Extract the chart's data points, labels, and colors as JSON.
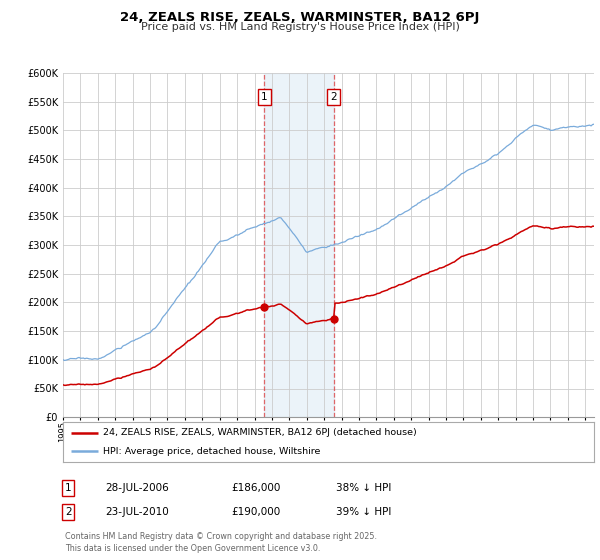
{
  "title": "24, ZEALS RISE, ZEALS, WARMINSTER, BA12 6PJ",
  "subtitle": "Price paid vs. HM Land Registry's House Price Index (HPI)",
  "background_color": "#ffffff",
  "plot_bg_color": "#ffffff",
  "grid_color": "#cccccc",
  "hpi_color": "#7aabdb",
  "price_color": "#cc0000",
  "sale1_date": 2006.57,
  "sale1_price": 186000,
  "sale2_date": 2010.55,
  "sale2_price": 190000,
  "shade_color": "#c8dff0",
  "shade_alpha": 0.35,
  "ylim": [
    0,
    600000
  ],
  "xlim_start": 1995.0,
  "xlim_end": 2025.5,
  "legend_label_red": "24, ZEALS RISE, ZEALS, WARMINSTER, BA12 6PJ (detached house)",
  "legend_label_blue": "HPI: Average price, detached house, Wiltshire",
  "footnote": "Contains HM Land Registry data © Crown copyright and database right 2025.\nThis data is licensed under the Open Government Licence v3.0.",
  "table_row1": [
    "1",
    "28-JUL-2006",
    "£186,000",
    "38% ↓ HPI"
  ],
  "table_row2": [
    "2",
    "23-JUL-2010",
    "£190,000",
    "39% ↓ HPI"
  ]
}
